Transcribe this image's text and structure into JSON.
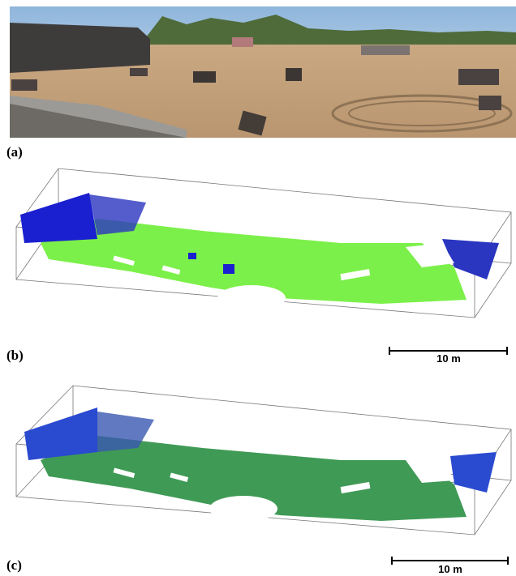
{
  "panels": [
    {
      "label": "(a)"
    },
    {
      "label": "(b)",
      "scale_bar": "10 m"
    },
    {
      "label": "(c)",
      "scale_bar": "10 m"
    }
  ]
}
